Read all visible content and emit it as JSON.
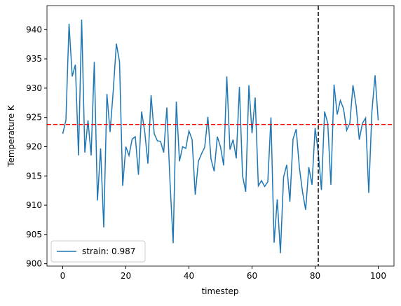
{
  "chart_data": {
    "type": "line",
    "xlabel": "timestep",
    "ylabel": "Temperature K",
    "x": [
      0,
      1,
      2,
      3,
      4,
      5,
      6,
      7,
      8,
      9,
      10,
      11,
      12,
      13,
      14,
      15,
      16,
      17,
      18,
      19,
      20,
      21,
      22,
      23,
      24,
      25,
      26,
      27,
      28,
      29,
      30,
      31,
      32,
      33,
      34,
      35,
      36,
      37,
      38,
      39,
      40,
      41,
      42,
      43,
      44,
      45,
      46,
      47,
      48,
      49,
      50,
      51,
      52,
      53,
      54,
      55,
      56,
      57,
      58,
      59,
      60,
      61,
      62,
      63,
      64,
      65,
      66,
      67,
      68,
      69,
      70,
      71,
      72,
      73,
      74,
      75,
      76,
      77,
      78,
      79,
      80,
      81,
      82,
      83,
      84,
      85,
      86,
      87,
      88,
      89,
      90,
      91,
      92,
      93,
      94,
      95,
      96,
      97,
      98,
      99,
      100
    ],
    "series": [
      {
        "name": "strain: 0.987",
        "color": "#1f77b4",
        "values": [
          922.2,
          924.5,
          941,
          932,
          934,
          918.5,
          941.7,
          919,
          924.5,
          918.5,
          934.5,
          910.8,
          919.7,
          906.2,
          929,
          922.5,
          929.5,
          937.6,
          934.5,
          913.3,
          920,
          918.5,
          921.3,
          921.7,
          915.2,
          926,
          922.5,
          917.1,
          928.8,
          922.2,
          921,
          920.9,
          919,
          926.7,
          914,
          903.5,
          927.7,
          917.5,
          920,
          919.7,
          922.7,
          921.2,
          911.8,
          917.5,
          918.8,
          919.9,
          925.1,
          917.9,
          915.8,
          921.7,
          920,
          916.8,
          932,
          919.5,
          921.2,
          918,
          930.2,
          915,
          912.3,
          930.5,
          922.3,
          928.4,
          913.3,
          914.2,
          913.2,
          914,
          925,
          903.6,
          911,
          901.8,
          914.8,
          916.9,
          910.6,
          921.3,
          923,
          916.5,
          912.3,
          909.2,
          916.5,
          913.5,
          923.2,
          919,
          912.6,
          926,
          924,
          913.5,
          930.6,
          925.5,
          927.9,
          926.5,
          922.8,
          924,
          930.5,
          927,
          921.2,
          924,
          924.9,
          912.1,
          926,
          932.2,
          924.5
        ]
      }
    ],
    "hline": {
      "value": 923.8,
      "color": "#ff0000"
    },
    "vline": {
      "value": 81,
      "color": "#000000"
    },
    "xlim": [
      -5,
      105
    ],
    "ylim": [
      899.6,
      944.1
    ],
    "xticks": [
      0,
      20,
      40,
      60,
      80,
      100
    ],
    "yticks": [
      900,
      905,
      910,
      915,
      920,
      925,
      930,
      935,
      940
    ],
    "legend": "lower left"
  }
}
